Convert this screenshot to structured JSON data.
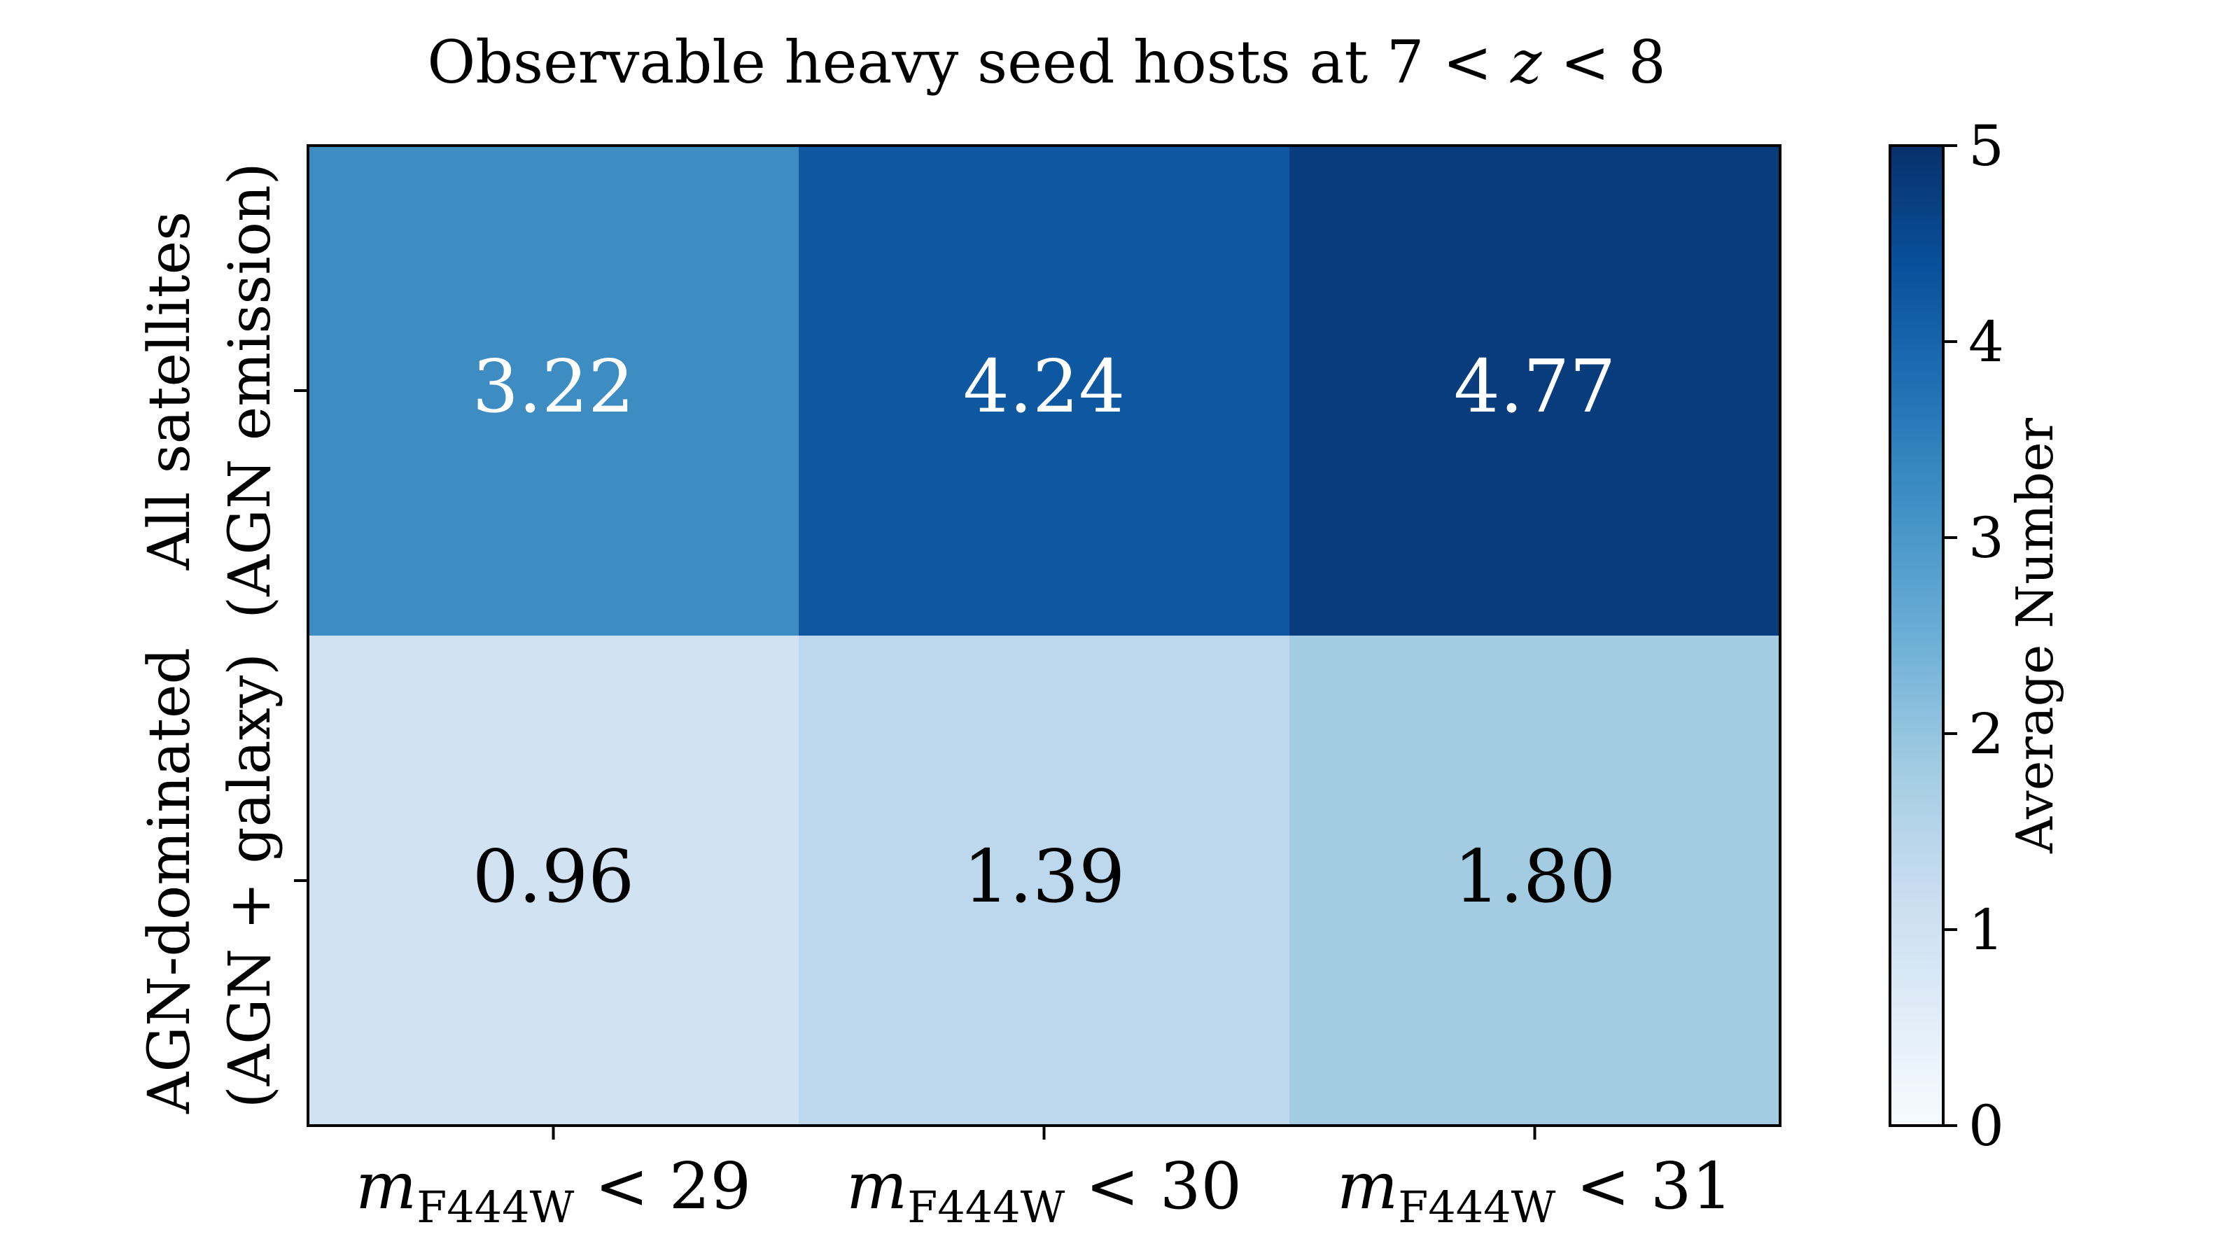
{
  "chart_data": {
    "type": "heatmap",
    "title": "Observable heavy seed hosts at 7 < z < 8",
    "title_parts": {
      "prefix": "Observable heavy seed hosts at 7 < ",
      "var": "z",
      "suffix": " < 8"
    },
    "x_categories": [
      {
        "var": "m",
        "sub": "F444W",
        "rel": " < 29"
      },
      {
        "var": "m",
        "sub": "F444W",
        "rel": " < 30"
      },
      {
        "var": "m",
        "sub": "F444W",
        "rel": " < 31"
      }
    ],
    "y_categories": [
      {
        "line1": "All satellites",
        "line2": "(AGN emission)"
      },
      {
        "line1": "AGN-dominated",
        "line2": "(AGN + galaxy)"
      }
    ],
    "values": [
      [
        3.22,
        4.24,
        4.77
      ],
      [
        0.96,
        1.39,
        1.8
      ]
    ],
    "value_labels": [
      [
        "3.22",
        "4.24",
        "4.77"
      ],
      [
        "0.96",
        "1.39",
        "1.80"
      ]
    ],
    "colormap": "Blues",
    "vmin": 0,
    "vmax": 5,
    "colorbar": {
      "label": "Average Number",
      "ticks": [
        0,
        1,
        2,
        3,
        4,
        5
      ]
    }
  }
}
